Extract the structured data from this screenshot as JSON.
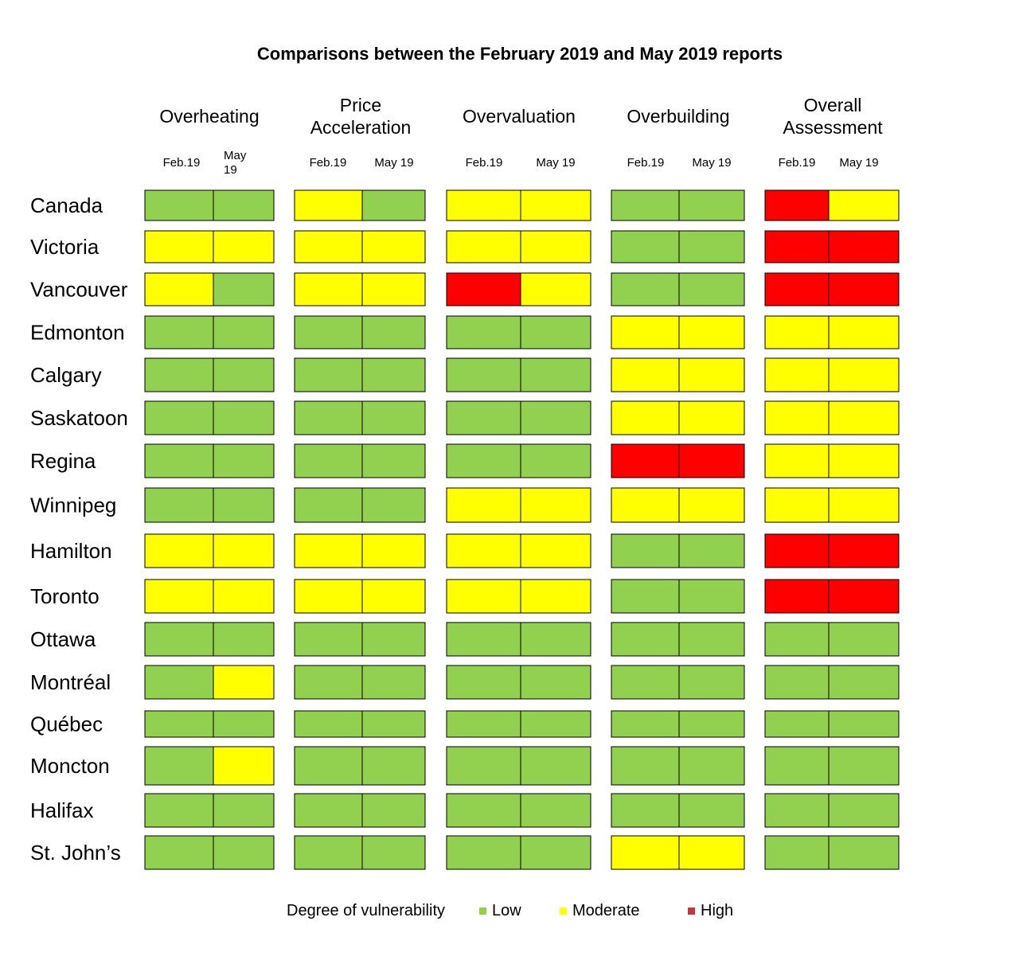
{
  "chart_data": {
    "type": "heatmap",
    "title": "Comparisons between the February 2019 and May 2019 reports",
    "indicators": [
      {
        "label": [
          "Overheating"
        ],
        "periods": [
          [
            "Feb.19"
          ],
          [
            "May",
            "19"
          ]
        ]
      },
      {
        "label": [
          "Price",
          "Acceleration"
        ],
        "periods": [
          [
            "Feb.19"
          ],
          [
            "May 19"
          ]
        ]
      },
      {
        "label": [
          "Overvaluation"
        ],
        "periods": [
          [
            "Feb.19"
          ],
          [
            "May 19"
          ]
        ]
      },
      {
        "label": [
          "Overbuilding"
        ],
        "periods": [
          [
            "Feb.19"
          ],
          [
            "May 19"
          ]
        ]
      },
      {
        "label": [
          "Overall",
          "Assessment"
        ],
        "periods": [
          [
            "Feb.19"
          ],
          [
            "May 19"
          ]
        ]
      }
    ],
    "rows": [
      {
        "city": "Canada",
        "values": [
          [
            "Low",
            "Low"
          ],
          [
            "Moderate",
            "Low"
          ],
          [
            "Moderate",
            "Moderate"
          ],
          [
            "Low",
            "Low"
          ],
          [
            "High",
            "Moderate"
          ]
        ]
      },
      {
        "city": "Victoria",
        "values": [
          [
            "Moderate",
            "Moderate"
          ],
          [
            "Moderate",
            "Moderate"
          ],
          [
            "Moderate",
            "Moderate"
          ],
          [
            "Low",
            "Low"
          ],
          [
            "High",
            "High"
          ]
        ]
      },
      {
        "city": "Vancouver",
        "values": [
          [
            "Moderate",
            "Low"
          ],
          [
            "Moderate",
            "Moderate"
          ],
          [
            "High",
            "Moderate"
          ],
          [
            "Low",
            "Low"
          ],
          [
            "High",
            "High"
          ]
        ]
      },
      {
        "city": "Edmonton",
        "values": [
          [
            "Low",
            "Low"
          ],
          [
            "Low",
            "Low"
          ],
          [
            "Low",
            "Low"
          ],
          [
            "Moderate",
            "Moderate"
          ],
          [
            "Moderate",
            "Moderate"
          ]
        ]
      },
      {
        "city": "Calgary",
        "values": [
          [
            "Low",
            "Low"
          ],
          [
            "Low",
            "Low"
          ],
          [
            "Low",
            "Low"
          ],
          [
            "Moderate",
            "Moderate"
          ],
          [
            "Moderate",
            "Moderate"
          ]
        ]
      },
      {
        "city": "Saskatoon",
        "values": [
          [
            "Low",
            "Low"
          ],
          [
            "Low",
            "Low"
          ],
          [
            "Low",
            "Low"
          ],
          [
            "Moderate",
            "Moderate"
          ],
          [
            "Moderate",
            "Moderate"
          ]
        ]
      },
      {
        "city": "Regina",
        "values": [
          [
            "Low",
            "Low"
          ],
          [
            "Low",
            "Low"
          ],
          [
            "Low",
            "Low"
          ],
          [
            "High",
            "High"
          ],
          [
            "Moderate",
            "Moderate"
          ]
        ]
      },
      {
        "city": "Winnipeg",
        "values": [
          [
            "Low",
            "Low"
          ],
          [
            "Low",
            "Low"
          ],
          [
            "Moderate",
            "Moderate"
          ],
          [
            "Moderate",
            "Moderate"
          ],
          [
            "Moderate",
            "Moderate"
          ]
        ]
      },
      {
        "city": "Hamilton",
        "values": [
          [
            "Moderate",
            "Moderate"
          ],
          [
            "Moderate",
            "Moderate"
          ],
          [
            "Moderate",
            "Moderate"
          ],
          [
            "Low",
            "Low"
          ],
          [
            "High",
            "High"
          ]
        ]
      },
      {
        "city": "Toronto",
        "values": [
          [
            "Moderate",
            "Moderate"
          ],
          [
            "Moderate",
            "Moderate"
          ],
          [
            "Moderate",
            "Moderate"
          ],
          [
            "Low",
            "Low"
          ],
          [
            "High",
            "High"
          ]
        ]
      },
      {
        "city": "Ottawa",
        "values": [
          [
            "Low",
            "Low"
          ],
          [
            "Low",
            "Low"
          ],
          [
            "Low",
            "Low"
          ],
          [
            "Low",
            "Low"
          ],
          [
            "Low",
            "Low"
          ]
        ]
      },
      {
        "city": "Montréal",
        "values": [
          [
            "Low",
            "Moderate"
          ],
          [
            "Low",
            "Low"
          ],
          [
            "Low",
            "Low"
          ],
          [
            "Low",
            "Low"
          ],
          [
            "Low",
            "Low"
          ]
        ]
      },
      {
        "city": "Québec",
        "values": [
          [
            "Low",
            "Low"
          ],
          [
            "Low",
            "Low"
          ],
          [
            "Low",
            "Low"
          ],
          [
            "Low",
            "Low"
          ],
          [
            "Low",
            "Low"
          ]
        ]
      },
      {
        "city": "Moncton",
        "values": [
          [
            "Low",
            "Moderate"
          ],
          [
            "Low",
            "Low"
          ],
          [
            "Low",
            "Low"
          ],
          [
            "Low",
            "Low"
          ],
          [
            "Low",
            "Low"
          ]
        ]
      },
      {
        "city": "Halifax",
        "values": [
          [
            "Low",
            "Low"
          ],
          [
            "Low",
            "Low"
          ],
          [
            "Low",
            "Low"
          ],
          [
            "Low",
            "Low"
          ],
          [
            "Low",
            "Low"
          ]
        ]
      },
      {
        "city": "St. John’s",
        "values": [
          [
            "Low",
            "Low"
          ],
          [
            "Low",
            "Low"
          ],
          [
            "Low",
            "Low"
          ],
          [
            "Moderate",
            "Moderate"
          ],
          [
            "Low",
            "Low"
          ]
        ]
      }
    ],
    "legend": {
      "title": "Degree of vulnerability",
      "items": [
        {
          "label": "Low",
          "level": "Low"
        },
        {
          "label": "Moderate",
          "level": "Moderate"
        },
        {
          "label": "High",
          "level": "High"
        }
      ]
    },
    "colors": {
      "Low": "#92d050",
      "Moderate": "#ffff00",
      "High": "#ff0000",
      "Legend-High": "#c0393b"
    }
  }
}
